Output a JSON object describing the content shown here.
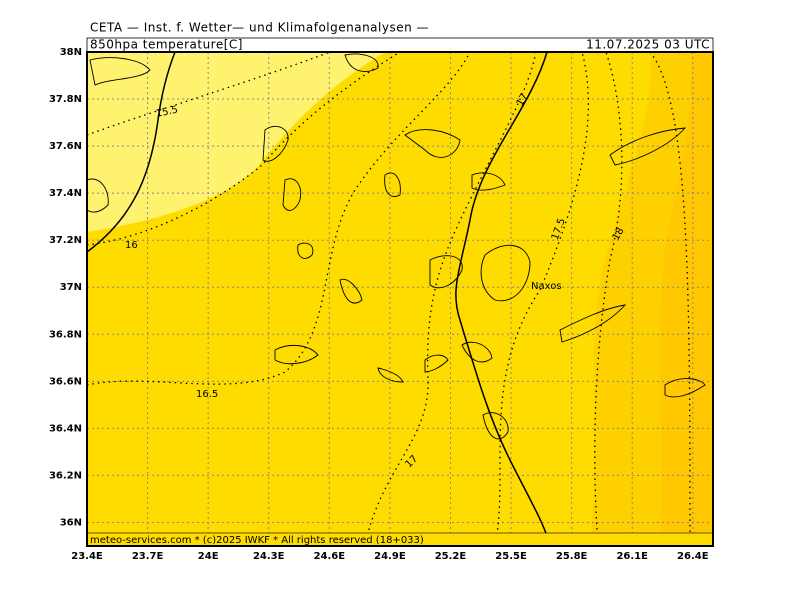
{
  "header": {
    "title": "CETA — Inst. f. Wetter— und Klimafolgenanalysen —",
    "parameter": "850hpa temperature[C]",
    "valid_time": "11.07.2025 03 UTC"
  },
  "map": {
    "xlim": [
      23.4,
      26.5
    ],
    "ylim": [
      35.9,
      38
    ],
    "xticks": [
      {
        "value": 23.4,
        "label": "23.4E"
      },
      {
        "value": 23.7,
        "label": "23.7E"
      },
      {
        "value": 24,
        "label": "24E"
      },
      {
        "value": 24.3,
        "label": "24.3E"
      },
      {
        "value": 24.6,
        "label": "24.6E"
      },
      {
        "value": 24.9,
        "label": "24.9E"
      },
      {
        "value": 25.2,
        "label": "25.2E"
      },
      {
        "value": 25.5,
        "label": "25.5E"
      },
      {
        "value": 25.8,
        "label": "25.8E"
      },
      {
        "value": 26.1,
        "label": "26.1E"
      },
      {
        "value": 26.4,
        "label": "26.4E"
      }
    ],
    "yticks": [
      {
        "value": 38,
        "label": "38N"
      },
      {
        "value": 37.8,
        "label": "37.8N"
      },
      {
        "value": 37.6,
        "label": "37.6N"
      },
      {
        "value": 37.4,
        "label": "37.4N"
      },
      {
        "value": 37.2,
        "label": "37.2N"
      },
      {
        "value": 37,
        "label": "37N"
      },
      {
        "value": 36.8,
        "label": "36.8N"
      },
      {
        "value": 36.6,
        "label": "36.6N"
      },
      {
        "value": 36.4,
        "label": "36.4N"
      },
      {
        "value": 36.2,
        "label": "36.2N"
      },
      {
        "value": 36,
        "label": "36N"
      }
    ],
    "contour_labels": [
      "15.5",
      "16",
      "16.5",
      "17",
      "17",
      "17.5",
      "18"
    ],
    "places": [
      "Naxos"
    ]
  },
  "footer": "meteo-services.com * (c)2025 IWKF * All rights reserved (18+033)"
}
